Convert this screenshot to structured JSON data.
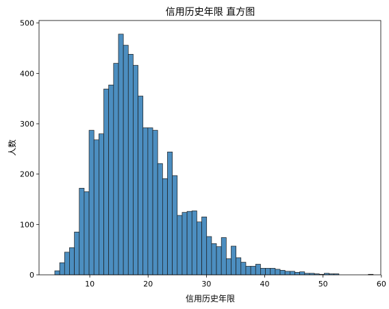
{
  "chart_data": {
    "type": "bar",
    "title": "信用历史年限 直方图",
    "xlabel": "信用历史年限",
    "ylabel": "人数",
    "xlim": [
      1.3,
      59.9
    ],
    "ylim": [
      0,
      505
    ],
    "xticks": [
      10,
      20,
      30,
      40,
      50,
      60
    ],
    "yticks": [
      0,
      100,
      200,
      300,
      400,
      500
    ],
    "bin_start": 4.0,
    "bin_width": 0.84,
    "grid": false,
    "values": [
      8,
      24,
      45,
      54,
      85,
      172,
      165,
      287,
      268,
      280,
      369,
      377,
      420,
      478,
      456,
      438,
      416,
      355,
      292,
      292,
      287,
      221,
      191,
      244,
      197,
      118,
      124,
      126,
      127,
      105,
      115,
      76,
      62,
      56,
      74,
      32,
      57,
      34,
      25,
      17,
      17,
      21,
      13,
      13,
      13,
      11,
      9,
      7,
      7,
      5,
      6,
      3,
      3,
      2,
      1,
      3,
      2,
      2,
      0,
      0,
      0,
      0,
      0,
      0,
      1
    ]
  }
}
